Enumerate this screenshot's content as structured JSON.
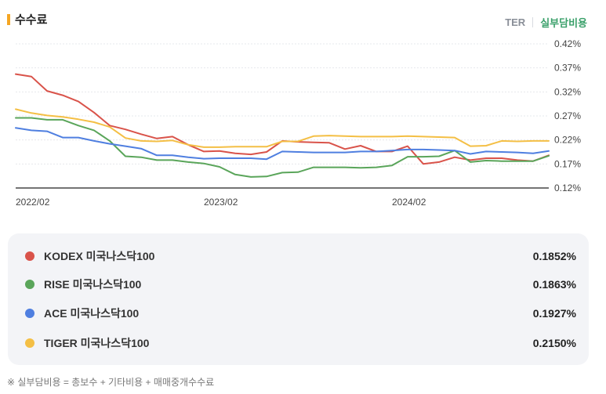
{
  "header": {
    "title": "수수료",
    "toggle_ter": "TER",
    "toggle_real": "실부담비용"
  },
  "chart_data": {
    "type": "line",
    "y_ticks": [
      "0.42%",
      "0.37%",
      "0.32%",
      "0.27%",
      "0.22%",
      "0.17%",
      "0.12%"
    ],
    "ylim": [
      0.12,
      0.42
    ],
    "x_labels": [
      "2022/02",
      "2023/02",
      "2024/02"
    ],
    "series": [
      {
        "name": "KODEX 미국나스닥100",
        "color": "#d9534a",
        "values": [
          0.357,
          0.352,
          0.322,
          0.313,
          0.3,
          0.277,
          0.25,
          0.242,
          0.232,
          0.223,
          0.227,
          0.21,
          0.196,
          0.197,
          0.192,
          0.19,
          0.195,
          0.218,
          0.216,
          0.215,
          0.214,
          0.201,
          0.208,
          0.196,
          0.196,
          0.207,
          0.17,
          0.174,
          0.184,
          0.178,
          0.182,
          0.182,
          0.178,
          0.176,
          0.188
        ]
      },
      {
        "name": "RISE 미국나스닥100",
        "color": "#5aa55a",
        "values": [
          0.266,
          0.266,
          0.262,
          0.262,
          0.25,
          0.24,
          0.218,
          0.186,
          0.184,
          0.178,
          0.178,
          0.174,
          0.171,
          0.164,
          0.148,
          0.143,
          0.144,
          0.152,
          0.153,
          0.163,
          0.163,
          0.163,
          0.162,
          0.163,
          0.167,
          0.185,
          0.185,
          0.186,
          0.198,
          0.174,
          0.177,
          0.176,
          0.176,
          0.176,
          0.187
        ]
      },
      {
        "name": "ACE 미국나스닥100",
        "color": "#4f7fe0",
        "values": [
          0.245,
          0.24,
          0.238,
          0.225,
          0.225,
          0.218,
          0.212,
          0.207,
          0.202,
          0.188,
          0.188,
          0.184,
          0.181,
          0.182,
          0.182,
          0.182,
          0.18,
          0.196,
          0.195,
          0.194,
          0.194,
          0.194,
          0.196,
          0.196,
          0.198,
          0.2,
          0.2,
          0.199,
          0.198,
          0.191,
          0.196,
          0.195,
          0.194,
          0.192,
          0.197
        ]
      },
      {
        "name": "TIGER 미국나스닥100",
        "color": "#f4bf45",
        "values": [
          0.284,
          0.276,
          0.271,
          0.268,
          0.263,
          0.257,
          0.247,
          0.224,
          0.218,
          0.217,
          0.219,
          0.21,
          0.205,
          0.205,
          0.206,
          0.206,
          0.206,
          0.217,
          0.217,
          0.228,
          0.229,
          0.228,
          0.227,
          0.227,
          0.227,
          0.228,
          0.227,
          0.226,
          0.225,
          0.207,
          0.208,
          0.218,
          0.217,
          0.218,
          0.218
        ]
      }
    ]
  },
  "legend": [
    {
      "name": "KODEX 미국나스닥100",
      "value": "0.1852%",
      "color": "#d9534a"
    },
    {
      "name": "RISE 미국나스닥100",
      "value": "0.1863%",
      "color": "#5aa55a"
    },
    {
      "name": "ACE 미국나스닥100",
      "value": "0.1927%",
      "color": "#4f7fe0"
    },
    {
      "name": "TIGER 미국나스닥100",
      "value": "0.2150%",
      "color": "#f4bf45"
    }
  ],
  "footnote": "※ 실부담비용 = 총보수 + 기타비용 + 매매중개수수료"
}
